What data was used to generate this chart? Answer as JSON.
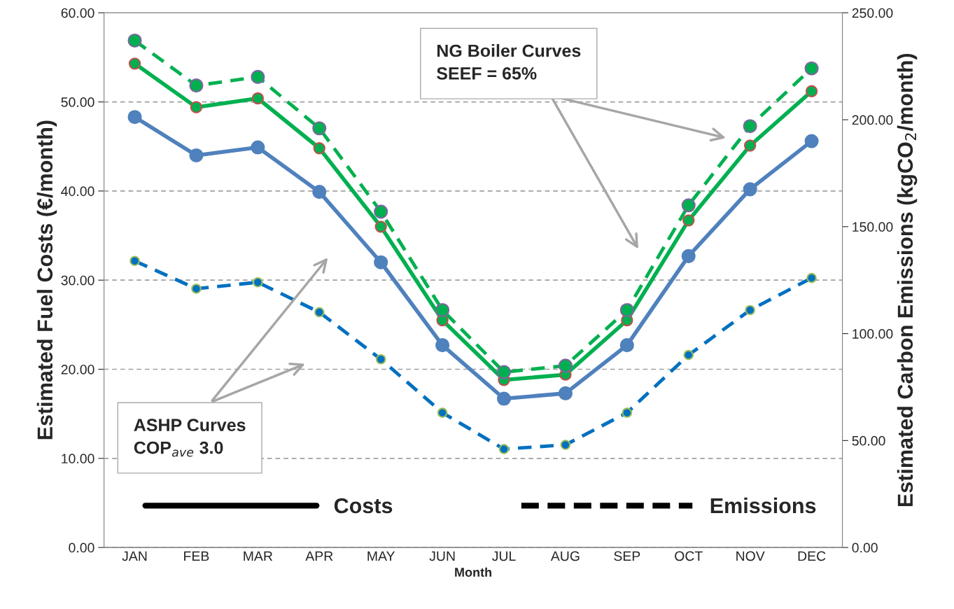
{
  "chart_data": {
    "type": "line",
    "xlabel": "Month",
    "ylabel": "Estimated Fuel Costs (€/month)",
    "y2label": "Estimated Carbon Emissions (kgCO$_{2}$/month)",
    "categories": [
      "JAN",
      "FEB",
      "MAR",
      "APR",
      "MAY",
      "JUN",
      "JUL",
      "AUG",
      "SEP",
      "OCT",
      "NOV",
      "DEC"
    ],
    "series": [
      {
        "color": "#4f81bd",
        "line_style": "solid",
        "values": [
          48.3,
          44.0,
          44.9,
          39.9,
          32.0,
          22.7,
          16.7,
          17.3,
          22.7,
          32.7,
          40.2,
          45.6
        ]
      },
      {
        "color": "#00b050",
        "line_style": "solid",
        "values": [
          54.3,
          49.4,
          50.4,
          44.8,
          36.0,
          25.5,
          18.8,
          19.4,
          25.5,
          36.7,
          45.1,
          51.2
        ]
      },
      {
        "color": "#00b050",
        "line_style": "dashed",
        "axis": "y2",
        "values": [
          237,
          216,
          220,
          196,
          157,
          111,
          82,
          85,
          111,
          160,
          197,
          224
        ]
      },
      {
        "color": "#0070c0",
        "line_style": "dashed",
        "axis": "y2",
        "values": [
          134,
          121,
          124,
          110,
          88,
          63,
          46,
          48,
          63,
          90,
          111,
          126
        ]
      }
    ],
    "ylim": [
      0,
      60
    ],
    "yticks": [
      {
        "value": 0,
        "label": "0.00"
      },
      {
        "value": 10,
        "label": "10.00"
      },
      {
        "value": 20,
        "label": "20.00"
      },
      {
        "value": 30,
        "label": "30.00"
      },
      {
        "value": 40,
        "label": "40.00"
      },
      {
        "value": 50,
        "label": "50.00"
      },
      {
        "value": 60,
        "label": "60.00"
      }
    ],
    "y2lim": [
      0,
      250
    ],
    "y2ticks": [
      {
        "value": 0,
        "label": "0.00"
      },
      {
        "value": 50,
        "label": "50.00"
      },
      {
        "value": 100,
        "label": "100.00"
      },
      {
        "value": 150,
        "label": "150.00"
      },
      {
        "value": 200,
        "label": "200.00"
      },
      {
        "value": 250,
        "label": "250.00"
      }
    ],
    "marker": "circle",
    "grid": true,
    "annotations": [
      "NG Boiler Curves\nSEEF = 65%",
      "ASHP Curves\nCOP$_{ave}$ 3.0",
      "Costs",
      "Emissions"
    ]
  }
}
